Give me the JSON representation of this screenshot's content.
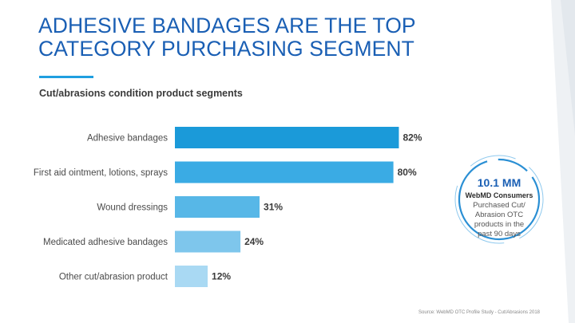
{
  "slide": {
    "title": "ADHESIVE BANDAGES ARE THE TOP CATEGORY PURCHASING SEGMENT",
    "subtitle": "Cut/abrasions condition product segments",
    "source": "Source: WebMD OTC Profile Study - Cut/Abrasions 2018"
  },
  "stat": {
    "number": "10.1 MM",
    "headline": "WebMD Consumers",
    "description": "Purchased Cut/ Abrasion OTC products in the past 90 days"
  },
  "colors": {
    "title": "#1a5fb4",
    "bars": [
      "#1b9ad9",
      "#3aabe4",
      "#57b7e7",
      "#7ec6ec",
      "#a9d9f3"
    ]
  },
  "chart_data": {
    "type": "bar",
    "orientation": "horizontal",
    "title": "Cut/abrasions condition product segments",
    "categories": [
      "Adhesive bandages",
      "First aid ointment, lotions, sprays",
      "Wound dressings",
      "Medicated adhesive bandages",
      "Other cut/abrasion product"
    ],
    "values": [
      82,
      80,
      31,
      24,
      12
    ],
    "value_labels": [
      "82%",
      "80%",
      "31%",
      "24%",
      "12%"
    ],
    "unit": "%",
    "xlim": [
      0,
      100
    ],
    "grid": false
  }
}
